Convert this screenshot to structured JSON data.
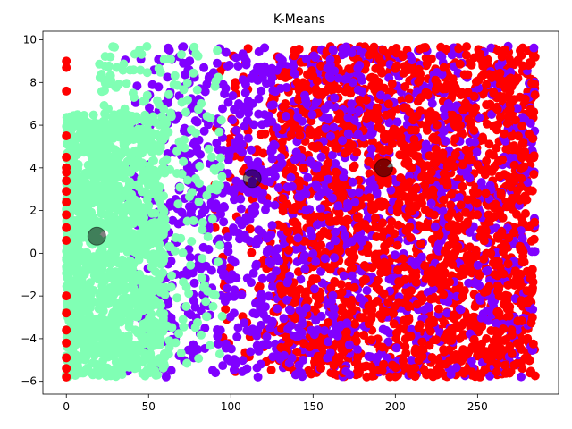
{
  "chart_data": {
    "type": "scatter",
    "title": "K-Means",
    "xlabel": "",
    "ylabel": "",
    "xlim": [
      -14.25,
      299.25
    ],
    "ylim": [
      -6.6,
      10.4
    ],
    "xticks": [
      0,
      50,
      100,
      150,
      200,
      250
    ],
    "yticks": [
      -6,
      -4,
      -2,
      0,
      2,
      4,
      6,
      8,
      10
    ],
    "grid": false,
    "legend": "none",
    "colors": {
      "cluster_a": "#80ffb4",
      "cluster_b": "#8000ff",
      "cluster_c": "#ff0000",
      "centroid": "#000000"
    },
    "series": [
      {
        "cluster": 0,
        "color": "#80ffb4",
        "x_range": [
          0,
          95
        ],
        "y_range": [
          -5.8,
          9.7
        ],
        "dense_core": {
          "x": [
            0,
            60
          ],
          "y": [
            -5.8,
            6.5
          ]
        }
      },
      {
        "cluster": 1,
        "color": "#8000ff",
        "x_range": [
          35,
          285
        ],
        "y_range": [
          -5.8,
          9.7
        ]
      },
      {
        "cluster": 2,
        "color": "#ff0000",
        "x_range": [
          0,
          285
        ],
        "y_range": [
          -5.8,
          9.7
        ],
        "note_x0_stripe": [
          -5.8,
          9.2
        ]
      }
    ],
    "centroids": [
      {
        "x": 18.5,
        "y": 0.8
      },
      {
        "x": 113,
        "y": 3.5
      },
      {
        "x": 193,
        "y": 4.0
      }
    ]
  }
}
